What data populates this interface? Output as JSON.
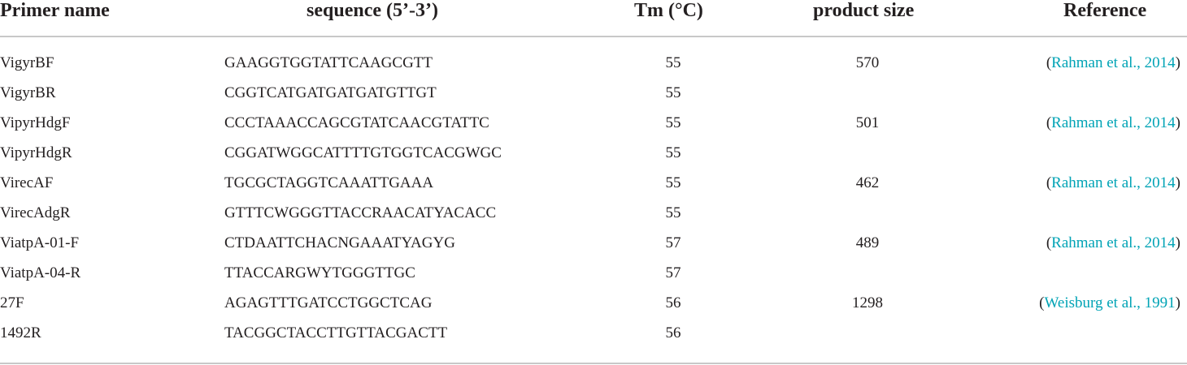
{
  "headers": {
    "name": "Primer name",
    "sequence": "sequence (5’-3’)",
    "tm": "Tm (°C)",
    "size": "product size",
    "reference": "Reference"
  },
  "rows": [
    {
      "name": "VigyrBF",
      "sequence": "GAAGGTGGTATTCAAGCGTT",
      "tm": "55",
      "size": "570",
      "ref_open": "(",
      "ref": "Rahman et al., 2014",
      "ref_close": ")"
    },
    {
      "name": "VigyrBR",
      "sequence": "CGGTCATGATGATGATGTTGT",
      "tm": "55",
      "size": "",
      "ref_open": "",
      "ref": "",
      "ref_close": ""
    },
    {
      "name": "VipyrHdgF",
      "sequence": "CCCTAAACCAGCGTATCAACGTATTC",
      "tm": "55",
      "size": "501",
      "ref_open": "(",
      "ref": "Rahman et al., 2014",
      "ref_close": ")"
    },
    {
      "name": "VipyrHdgR",
      "sequence": "CGGATWGGCATTTTGTGGTCACGWGC",
      "tm": "55",
      "size": "",
      "ref_open": "",
      "ref": "",
      "ref_close": ""
    },
    {
      "name": "VirecAF",
      "sequence": "TGCGCTAGGTCAAATTGAAA",
      "tm": "55",
      "size": "462",
      "ref_open": "(",
      "ref": "Rahman et al., 2014",
      "ref_close": ")"
    },
    {
      "name": "VirecAdgR",
      "sequence": "GTTTCWGGGTTACCRAACATYACACC",
      "tm": "55",
      "size": "",
      "ref_open": "",
      "ref": "",
      "ref_close": ""
    },
    {
      "name": "ViatpA-01-F",
      "sequence": "CTDAATTCHACNGAAATYAGYG",
      "tm": "57",
      "size": "489",
      "ref_open": "(",
      "ref": "Rahman et al., 2014",
      "ref_close": ")"
    },
    {
      "name": "ViatpA-04-R",
      "sequence": "TTACCARGWYTGGGTTGC",
      "tm": "57",
      "size": "",
      "ref_open": "",
      "ref": "",
      "ref_close": ""
    },
    {
      "name": "27F",
      "sequence": "AGAGTTTGATCCTGGCTCAG",
      "tm": "56",
      "size": "1298",
      "ref_open": "(",
      "ref": "Weisburg et al., 1991",
      "ref_close": ")"
    },
    {
      "name": "1492R",
      "sequence": "TACGGCTACCTTGTTACGACTT",
      "tm": "56",
      "size": "",
      "ref_open": "",
      "ref": "",
      "ref_close": ""
    }
  ]
}
